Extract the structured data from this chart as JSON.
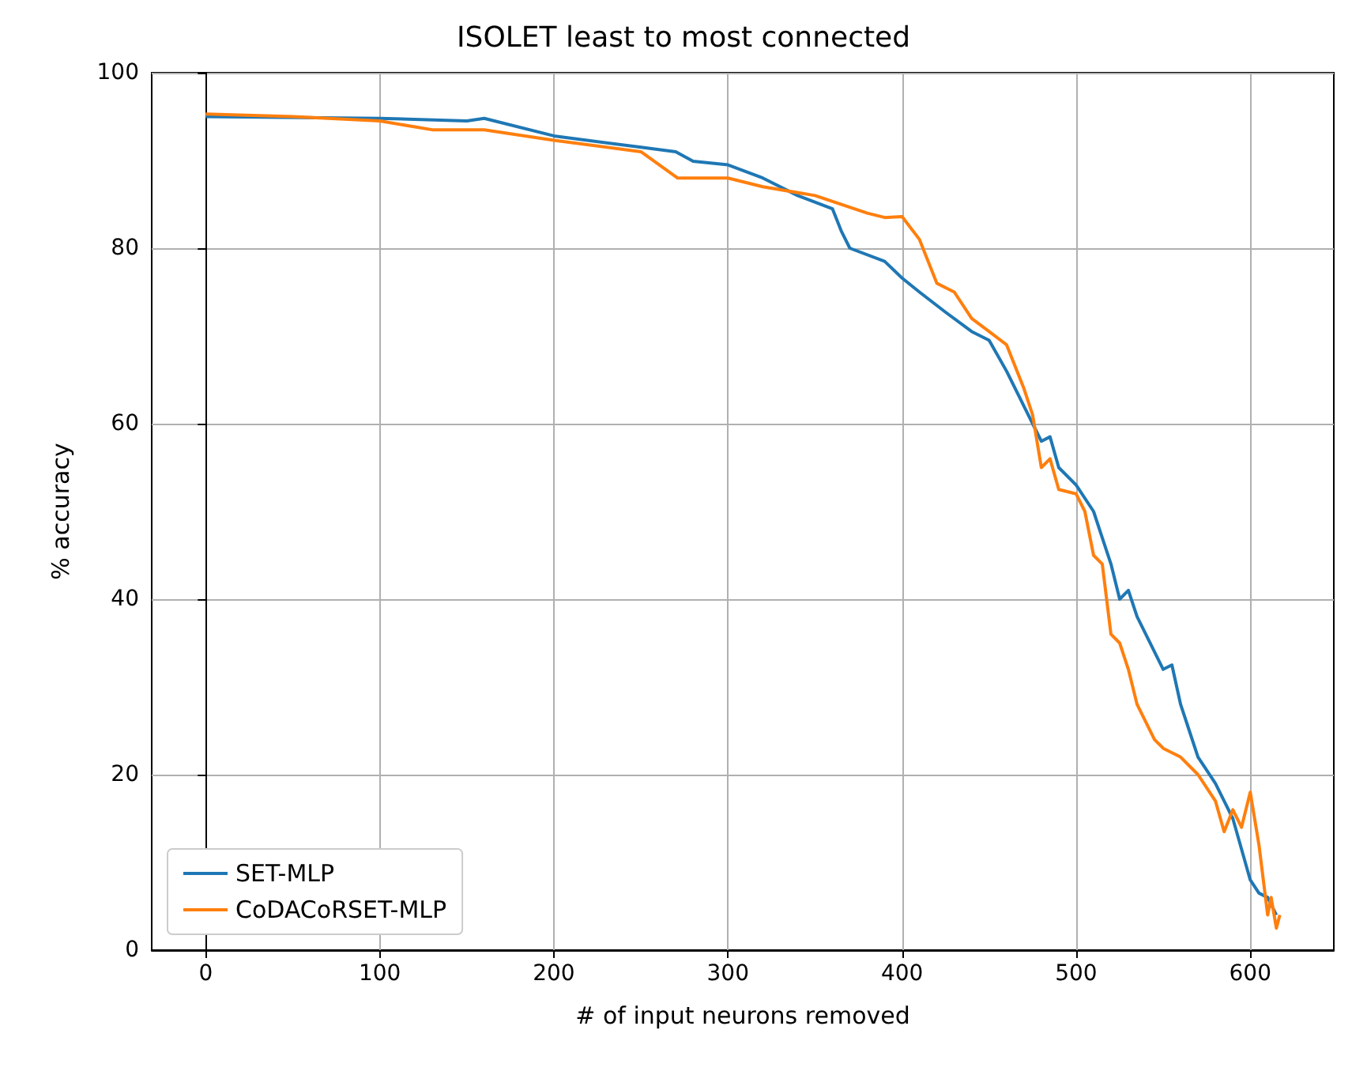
{
  "chart_data": {
    "type": "line",
    "title": "ISOLET least to most connected",
    "xlabel": "# of input neurons removed",
    "ylabel": "% accuracy",
    "xlim": [
      -31,
      648
    ],
    "xticks": [
      0,
      100,
      200,
      300,
      400,
      500,
      600
    ],
    "ylim": [
      0,
      100
    ],
    "yticks": [
      0,
      20,
      40,
      60,
      80,
      100
    ],
    "grid": true,
    "legend": "bottom left",
    "marker": "none",
    "line_style": "solid",
    "series": [
      {
        "name": "SET-MLP",
        "color": "#1f77b4",
        "x": [
          0,
          100,
          150,
          160,
          200,
          250,
          270,
          280,
          300,
          320,
          340,
          360,
          365,
          370,
          390,
          400,
          410,
          425,
          440,
          450,
          460,
          470,
          475,
          480,
          485,
          490,
          500,
          510,
          515,
          520,
          525,
          530,
          535,
          540,
          550,
          555,
          560,
          565,
          570,
          580,
          590,
          600,
          605,
          610,
          615
        ],
        "values": [
          95,
          94.8,
          94.5,
          94.8,
          92.8,
          91.5,
          91,
          89.9,
          89.5,
          88,
          86,
          84.5,
          82,
          80,
          78.5,
          76.6,
          75,
          72.7,
          70.5,
          69.5,
          66,
          62,
          60,
          58,
          58.5,
          55,
          53,
          50,
          47,
          44,
          40,
          41,
          38,
          36,
          32,
          32.5,
          28,
          25,
          22,
          19,
          15,
          8,
          6.5,
          6,
          4
        ]
      },
      {
        "name": "CoDACoRSET-MLP",
        "color": "#ff7f0e",
        "x": [
          0,
          50,
          100,
          130,
          160,
          200,
          250,
          271,
          280,
          300,
          320,
          350,
          380,
          390,
          400,
          410,
          420,
          425,
          430,
          440,
          450,
          460,
          470,
          475,
          480,
          485,
          490,
          500,
          505,
          510,
          515,
          520,
          525,
          530,
          535,
          540,
          545,
          550,
          560,
          570,
          580,
          585,
          590,
          595,
          600,
          605,
          610,
          612,
          615,
          617
        ],
        "values": [
          95.3,
          95,
          94.5,
          93.5,
          93.5,
          92.3,
          91,
          88,
          88,
          88,
          87,
          86,
          84,
          83.5,
          83.6,
          81,
          76,
          75.5,
          75,
          72,
          70.5,
          69,
          64,
          61,
          55,
          56,
          52.5,
          52,
          50,
          45,
          44,
          36,
          35,
          32,
          28,
          26,
          24,
          23,
          22,
          20,
          17,
          13.5,
          16,
          14,
          18,
          12,
          4,
          6,
          2.5,
          4
        ]
      }
    ]
  }
}
